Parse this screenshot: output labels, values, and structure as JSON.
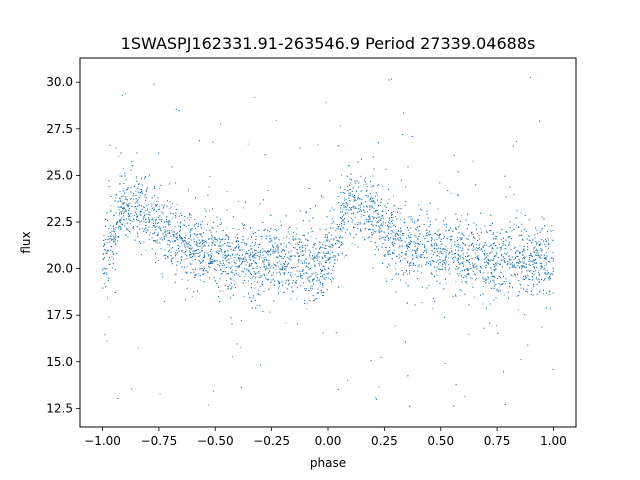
{
  "chart_data": {
    "type": "scatter",
    "title": "1SWASPJ162331.91-263546.9 Period 27339.04688s",
    "xlabel": "phase",
    "ylabel": "flux",
    "xlim": [
      -1.1,
      1.1
    ],
    "ylim": [
      11.5,
      31.3
    ],
    "x_ticks": [
      -1.0,
      -0.75,
      -0.5,
      -0.25,
      0.0,
      0.25,
      0.5,
      0.75,
      1.0
    ],
    "x_tick_labels": [
      "−1.00",
      "−0.75",
      "−0.50",
      "−0.25",
      "0.00",
      "0.25",
      "0.50",
      "0.75",
      "1.00"
    ],
    "y_ticks": [
      12.5,
      15.0,
      17.5,
      20.0,
      22.5,
      25.0,
      27.5,
      30.0
    ],
    "y_tick_labels": [
      "12.5",
      "15.0",
      "17.5",
      "20.0",
      "22.5",
      "25.0",
      "27.5",
      "30.0"
    ],
    "grid": false,
    "series": [
      {
        "marker_color": "#1f77b4",
        "phase_range": [
          -1.0,
          1.0
        ],
        "phase_period": 1.0,
        "profile_phase": [
          0.0,
          0.03,
          0.06,
          0.1,
          0.15,
          0.2,
          0.3,
          0.4,
          0.5,
          0.6,
          0.7,
          0.8,
          0.9,
          1.0
        ],
        "profile_flux": [
          20.3,
          21.0,
          22.4,
          23.6,
          23.4,
          22.8,
          21.8,
          21.2,
          20.8,
          20.6,
          20.5,
          20.4,
          20.3,
          20.3
        ],
        "bulk_flux_spread": 0.9,
        "outlier_flux_range": [
          12.3,
          30.3
        ],
        "point_count": 9000
      }
    ]
  }
}
